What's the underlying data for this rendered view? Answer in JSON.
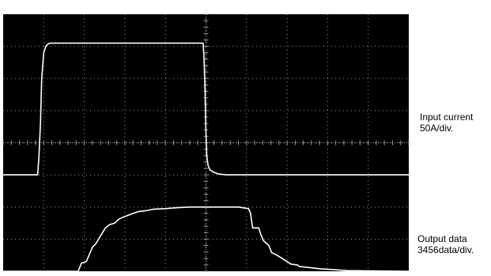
{
  "chart_data": {
    "type": "line",
    "title": "",
    "xlabel": "",
    "ylabel": "",
    "grid": true,
    "background": "#000000",
    "trace_color": "#ffffff",
    "xlim": [
      0,
      10
    ],
    "ylim": [
      0,
      8
    ],
    "channels": {
      "input": {
        "label": "Input current",
        "scale": "50A/div."
      },
      "output": {
        "label": "Output data",
        "scale": "3456data/div."
      }
    },
    "series": [
      {
        "x": [
          0,
          0.85,
          0.88,
          0.92,
          0.95,
          1.0,
          1.05,
          1.1,
          1.15,
          1.2,
          1.3,
          1.5,
          3.0,
          4.85,
          4.93,
          4.95,
          4.98,
          5.0,
          5.02,
          5.05,
          5.1,
          5.2,
          5.3,
          5.5,
          6.0,
          10
        ],
        "y": [
          3.0,
          3.0,
          3.5,
          4.6,
          6.0,
          6.8,
          7.0,
          7.07,
          7.1,
          7.1,
          7.1,
          7.1,
          7.1,
          7.1,
          7.1,
          6.7,
          5.5,
          4.3,
          3.6,
          3.3,
          3.15,
          3.08,
          3.03,
          3.0,
          3.0,
          3.0
        ]
      },
      {
        "x": [
          0,
          1.85,
          1.93,
          2.05,
          2.2,
          2.28,
          2.4,
          2.52,
          2.62,
          2.75,
          2.85,
          2.95,
          3.1,
          3.2,
          3.35,
          3.5,
          3.7,
          4.0,
          4.3,
          4.6,
          5.0,
          5.4,
          5.8,
          6.05,
          6.1,
          6.15,
          6.3,
          6.35,
          6.42,
          6.55,
          6.62,
          6.75,
          6.9,
          7.0,
          7.1,
          7.25,
          7.3,
          7.5,
          7.8,
          8.5,
          10
        ],
        "y": [
          0.0,
          0.0,
          0.25,
          0.3,
          0.75,
          0.85,
          1.1,
          1.35,
          1.45,
          1.5,
          1.62,
          1.68,
          1.75,
          1.8,
          1.86,
          1.88,
          1.93,
          1.95,
          1.98,
          2.0,
          2.0,
          2.0,
          2.0,
          1.95,
          1.8,
          1.35,
          1.35,
          1.15,
          0.95,
          0.8,
          0.58,
          0.5,
          0.38,
          0.3,
          0.22,
          0.2,
          0.15,
          0.12,
          0.08,
          0.02,
          0.0
        ]
      }
    ]
  }
}
